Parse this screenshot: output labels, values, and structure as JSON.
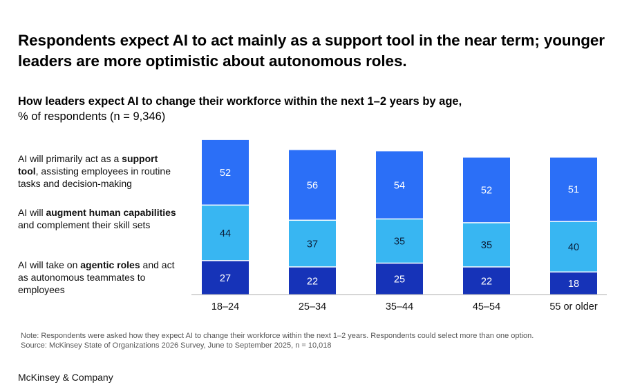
{
  "title": "Respondents expect AI to act mainly as a support tool in the near term; younger leaders are more optimistic about autonomous roles.",
  "subtitle_bold": "How leaders expect AI to change their workforce within the next 1–2 years by age,",
  "subtitle_regular": "% of respondents (n = 9,346)",
  "legend": [
    {
      "parts": [
        {
          "t": "AI will primarily act as a ",
          "b": false
        },
        {
          "t": "support tool",
          "b": true
        },
        {
          "t": ", assisting employees in routine tasks and decision-making",
          "b": false
        }
      ]
    },
    {
      "parts": [
        {
          "t": "AI will ",
          "b": false
        },
        {
          "t": "augment human capabilities",
          "b": true
        },
        {
          "t": " and complement their skill sets",
          "b": false
        }
      ]
    },
    {
      "parts": [
        {
          "t": "AI will take on ",
          "b": false
        },
        {
          "t": "agentic roles",
          "b": true
        },
        {
          "t": " and act as autonomous teammates to employees",
          "b": false
        }
      ]
    }
  ],
  "note": "Note: Respondents were asked how they expect AI to change their workforce within the next 1–2 years. Respondents could select more than one option.",
  "source": "Source: McKinsey State of Organizations 2026 Survey, June to September 2025, n = 10,018",
  "brand": "McKinsey & Company",
  "chart_data": {
    "type": "bar",
    "stacked": true,
    "title": "How leaders expect AI to change their workforce within the next 1–2 years by age",
    "ylabel": "% of respondents",
    "categories": [
      "18–24",
      "25–34",
      "35–44",
      "45–54",
      "55 or older"
    ],
    "series": [
      {
        "name": "Agentic roles",
        "color": "#1633b8",
        "label_color": "#ffffff",
        "values": [
          27,
          22,
          25,
          22,
          18
        ]
      },
      {
        "name": "Augment human capabilities",
        "color": "#38b6f2",
        "label_color": "#0b1f3a",
        "values": [
          44,
          37,
          35,
          35,
          40
        ]
      },
      {
        "name": "Support tool",
        "color": "#2b6ff7",
        "label_color": "#ffffff",
        "values": [
          52,
          56,
          54,
          52,
          51
        ]
      }
    ],
    "grid": false,
    "legend_position": "left"
  }
}
